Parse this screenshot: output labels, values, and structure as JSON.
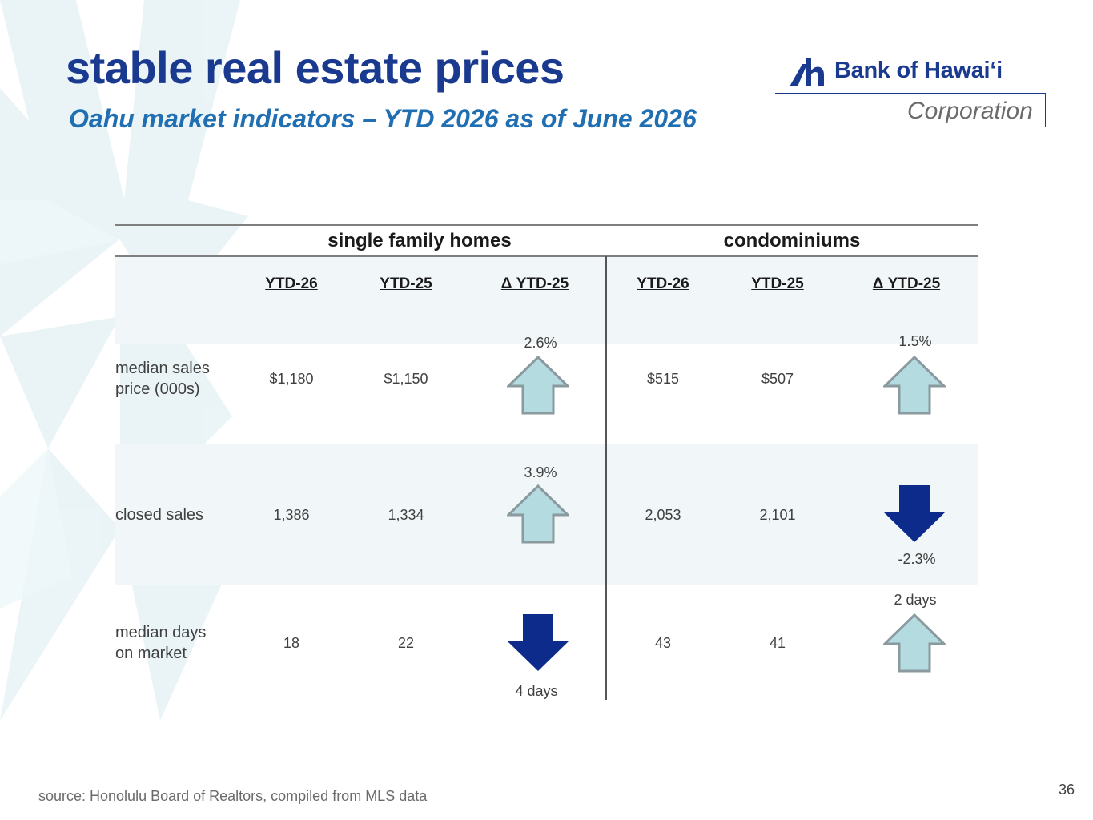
{
  "title": "stable real estate prices",
  "subtitle": "Oahu market indicators – YTD 2026 as of June 2026",
  "logo": {
    "bank_name": "Bank of Hawaiʻi",
    "corporation": "Corporation",
    "color": "#1a3a8f"
  },
  "table": {
    "groups": [
      "single family homes",
      "condominiums"
    ],
    "columns": [
      "YTD-26",
      "YTD-25",
      "Δ YTD-25",
      "YTD-26",
      "YTD-25",
      "Δ YTD-25"
    ],
    "rows": [
      {
        "label": "median sales\nprice (000s)",
        "sfh": {
          "ytd26": "$1,180",
          "ytd25": "$1,150",
          "delta": "2.6%",
          "direction": "up"
        },
        "condo": {
          "ytd26": "$515",
          "ytd25": "$507",
          "delta": "1.5%",
          "direction": "up"
        }
      },
      {
        "label": "closed sales",
        "sfh": {
          "ytd26": "1,386",
          "ytd25": "1,334",
          "delta": "3.9%",
          "direction": "up"
        },
        "condo": {
          "ytd26": "2,053",
          "ytd25": "2,101",
          "delta": "-2.3%",
          "direction": "down"
        }
      },
      {
        "label": "median days\non market",
        "sfh": {
          "ytd26": "18",
          "ytd25": "22",
          "delta": "4 days",
          "direction": "down"
        },
        "condo": {
          "ytd26": "43",
          "ytd25": "41",
          "delta": "2 days",
          "direction": "up"
        }
      }
    ]
  },
  "colors": {
    "arrow_up_fill": "#b4dbe0",
    "arrow_up_stroke": "#8a9a9e",
    "arrow_down_fill": "#0c2b8a",
    "band": "#f1f7f8"
  },
  "icons": {
    "up": "up-arrow-icon",
    "down": "down-arrow-icon"
  },
  "footer": {
    "source": "source: Honolulu Board of Realtors, compiled from MLS data",
    "page_number": "36"
  }
}
